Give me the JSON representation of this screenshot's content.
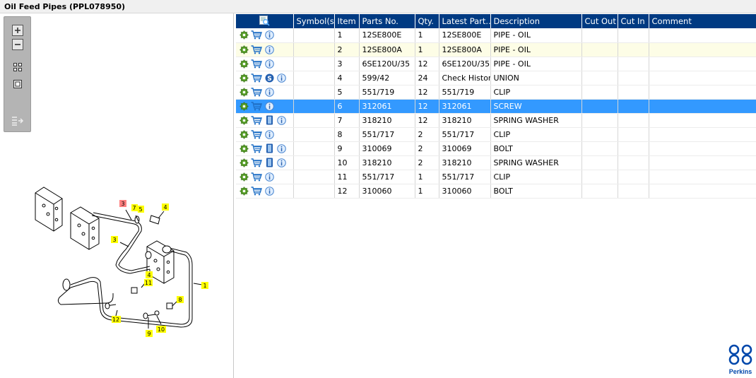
{
  "window": {
    "title": "Oil Feed Pipes (PPL078950)"
  },
  "toolbar": {
    "buttons": [
      {
        "name": "zoom-in-icon"
      },
      {
        "name": "zoom-out-icon"
      },
      {
        "name": "fit-all-icon"
      },
      {
        "name": "fit-window-icon"
      },
      {
        "name": "list-export-icon"
      }
    ]
  },
  "grid": {
    "headers": [
      "",
      "Symbol(s)",
      "Item",
      "Parts No.",
      "Qty.",
      "Latest Part...",
      "Description",
      "Cut Out",
      "Cut In",
      "Comment"
    ],
    "rows": [
      {
        "item": "1",
        "part": "12SE800E",
        "qty": "1",
        "latest": "12SE800E",
        "desc": "PIPE - OIL",
        "state": "normal",
        "extra": ""
      },
      {
        "item": "2",
        "part": "12SE800A",
        "qty": "1",
        "latest": "12SE800A",
        "desc": "PIPE - OIL",
        "state": "alt",
        "extra": ""
      },
      {
        "item": "3",
        "part": "6SE120U/35",
        "qty": "12",
        "latest": "6SE120U/35",
        "desc": "PIPE - OIL",
        "state": "normal",
        "extra": ""
      },
      {
        "item": "4",
        "part": "599/42",
        "qty": "24",
        "latest": "Check History",
        "desc": "UNION",
        "state": "normal",
        "extra": "s"
      },
      {
        "item": "5",
        "part": "551/719",
        "qty": "12",
        "latest": "551/719",
        "desc": "CLIP",
        "state": "normal",
        "extra": ""
      },
      {
        "item": "6",
        "part": "312061",
        "qty": "12",
        "latest": "312061",
        "desc": "SCREW",
        "state": "selected",
        "extra": ""
      },
      {
        "item": "7",
        "part": "318210",
        "qty": "12",
        "latest": "318210",
        "desc": "SPRING WASHER",
        "state": "normal",
        "extra": "book"
      },
      {
        "item": "8",
        "part": "551/717",
        "qty": "2",
        "latest": "551/717",
        "desc": "CLIP",
        "state": "normal",
        "extra": ""
      },
      {
        "item": "9",
        "part": "310069",
        "qty": "2",
        "latest": "310069",
        "desc": "BOLT",
        "state": "normal",
        "extra": "book"
      },
      {
        "item": "10",
        "part": "318210",
        "qty": "2",
        "latest": "318210",
        "desc": "SPRING WASHER",
        "state": "normal",
        "extra": "book"
      },
      {
        "item": "11",
        "part": "551/717",
        "qty": "1",
        "latest": "551/717",
        "desc": "CLIP",
        "state": "normal",
        "extra": ""
      },
      {
        "item": "12",
        "part": "310060",
        "qty": "1",
        "latest": "310060",
        "desc": "BOLT",
        "state": "normal",
        "extra": ""
      }
    ]
  },
  "diagram": {
    "callouts": [
      {
        "label": "1",
        "color": "#ffff00"
      },
      {
        "label": "3",
        "color": "#ffff00"
      },
      {
        "label": "3",
        "color": "#ff8080"
      },
      {
        "label": "7",
        "color": "#ffff00"
      },
      {
        "label": "5",
        "color": "#ffff00"
      },
      {
        "label": "4",
        "color": "#ffff00"
      },
      {
        "label": "4",
        "color": "#ffff00"
      },
      {
        "label": "11",
        "color": "#ffff00"
      },
      {
        "label": "8",
        "color": "#ffff00"
      },
      {
        "label": "12",
        "color": "#ffff00"
      },
      {
        "label": "9",
        "color": "#ffff00"
      },
      {
        "label": "10",
        "color": "#ffff00"
      }
    ]
  },
  "brand": {
    "name": "Perkins",
    "color": "#0047ab"
  },
  "colors": {
    "header": "#003a82",
    "selected": "#3399ff",
    "alt_row": "#fdfde6"
  }
}
